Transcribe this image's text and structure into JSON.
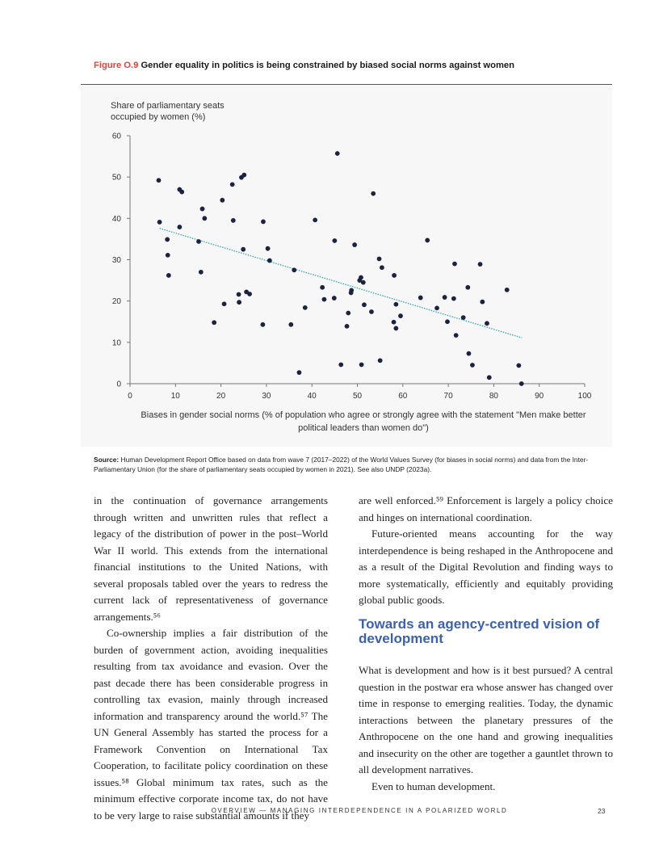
{
  "figure": {
    "number": "Figure O.9",
    "title": "Gender equality in politics is being constrained by biased social norms against women"
  },
  "chart_data": {
    "type": "scatter",
    "title": "Gender equality in politics is being constrained by biased social norms against women",
    "ylabel": "Share of parliamentary seats occupied by women (%)",
    "xlabel": "Biases in gender social norms (% of population who agree or strongly agree with the statement \"Men make better political leaders than women do\")",
    "xlim": [
      0,
      100
    ],
    "ylim": [
      0,
      60
    ],
    "xticks": [
      "0",
      "10",
      "20",
      "30",
      "40",
      "50",
      "60",
      "70",
      "80",
      "90",
      "100"
    ],
    "yticks": [
      "0",
      "10",
      "20",
      "30",
      "40",
      "50",
      "60"
    ],
    "grid": false,
    "point_color": "#1c2340",
    "trend_color": "#3aa8a8",
    "trendline": [
      [
        6.5,
        37.6
      ],
      [
        86.2,
        11.1
      ]
    ],
    "points": [
      [
        6.3,
        49.2
      ],
      [
        6.5,
        39.1
      ],
      [
        8.2,
        34.9
      ],
      [
        8.3,
        31.1
      ],
      [
        8.5,
        26.2
      ],
      [
        10.9,
        47.0
      ],
      [
        11.4,
        46.4
      ],
      [
        10.9,
        37.9
      ],
      [
        15.1,
        34.4
      ],
      [
        15.6,
        27.0
      ],
      [
        15.9,
        42.3
      ],
      [
        16.4,
        40.0
      ],
      [
        18.5,
        14.8
      ],
      [
        20.3,
        44.4
      ],
      [
        20.7,
        19.3
      ],
      [
        22.5,
        48.2
      ],
      [
        22.7,
        39.5
      ],
      [
        23.9,
        21.6
      ],
      [
        24.0,
        19.7
      ],
      [
        24.5,
        49.9
      ],
      [
        25.1,
        50.5
      ],
      [
        24.9,
        32.5
      ],
      [
        25.6,
        22.2
      ],
      [
        26.3,
        21.7
      ],
      [
        29.2,
        14.3
      ],
      [
        29.3,
        39.2
      ],
      [
        30.3,
        32.7
      ],
      [
        30.7,
        29.8
      ],
      [
        35.4,
        14.3
      ],
      [
        36.1,
        27.5
      ],
      [
        37.2,
        2.7
      ],
      [
        38.5,
        18.4
      ],
      [
        40.7,
        39.6
      ],
      [
        42.3,
        23.3
      ],
      [
        42.7,
        20.4
      ],
      [
        44.9,
        20.7
      ],
      [
        45.0,
        34.6
      ],
      [
        45.6,
        55.7
      ],
      [
        46.4,
        4.6
      ],
      [
        47.7,
        13.9
      ],
      [
        48.0,
        17.1
      ],
      [
        48.7,
        22.6
      ],
      [
        48.6,
        22.0
      ],
      [
        49.4,
        33.6
      ],
      [
        50.9,
        4.6
      ],
      [
        53.5,
        46.0
      ],
      [
        65.4,
        34.7
      ],
      [
        54.8,
        30.2
      ],
      [
        55.4,
        28.1
      ],
      [
        58.1,
        26.2
      ],
      [
        71.4,
        29.0
      ],
      [
        77.0,
        28.9
      ],
      [
        50.8,
        25.7
      ],
      [
        50.5,
        25.0
      ],
      [
        51.3,
        24.5
      ],
      [
        74.3,
        23.3
      ],
      [
        82.9,
        22.7
      ],
      [
        63.9,
        20.8
      ],
      [
        69.2,
        20.9
      ],
      [
        71.2,
        20.6
      ],
      [
        77.5,
        19.8
      ],
      [
        58.5,
        19.2
      ],
      [
        51.5,
        19.1
      ],
      [
        67.5,
        18.3
      ],
      [
        53.1,
        17.4
      ],
      [
        59.5,
        16.4
      ],
      [
        73.3,
        16.0
      ],
      [
        58.0,
        14.9
      ],
      [
        69.8,
        15.0
      ],
      [
        78.5,
        14.6
      ],
      [
        58.5,
        13.4
      ],
      [
        71.7,
        11.7
      ],
      [
        74.5,
        7.3
      ],
      [
        55.0,
        5.6
      ],
      [
        75.3,
        4.5
      ],
      [
        85.5,
        4.4
      ],
      [
        79.0,
        1.5
      ],
      [
        86.1,
        0.0
      ]
    ]
  },
  "source": {
    "label": "Source:",
    "text": " Human Development Report Office based on data from wave 7 (2017–2022) of the World Values Survey (for biases in social norms) and data from the Inter-Parliamentary Union (for the share of parliamentary seats occupied by women in 2021). See also UNDP (2023a)."
  },
  "body": {
    "left": [
      "in the continuation of governance arrangements through written and unwritten rules that reflect a legacy of the distribution of power in the post–World War II world. This extends from the international financial institutions to the United Nations, with several proposals tabled over the years to redress the current lack of representativeness of governance arrangements.⁵⁶",
      "Co-ownership implies a fair distribution of the burden of government action, avoiding inequalities resulting from tax avoidance and evasion. Over the past decade there has been considerable progress in controlling tax evasion, mainly through increased information and transparency around the world.⁵⁷ The UN General Assembly has started the process for a Framework Convention on International Tax Cooperation, to facilitate policy coordination on these issues.⁵⁸ Global minimum tax rates, such as the minimum effective corporate income tax, do not have to be very large to raise substantial amounts if they"
    ],
    "right_top": [
      "are well enforced.⁵⁹ Enforcement is largely a policy choice and hinges on international coordination.",
      "Future-oriented means accounting for the way interdependence is being reshaped in the Anthropocene and as a result of the Digital Revolution and finding ways to more systematically, efficiently and equitably providing global public goods."
    ],
    "heading": "Towards an agency-centred vision of development",
    "right_bottom": [
      "What is development and how is it best pursued? A central question in the postwar era whose answer has changed over time in response to emerging realities. Today, the dynamic interactions between the planetary pressures of the Anthropocene on the one hand and growing inequalities and insecurity on the other are together a gauntlet thrown to all development narratives.",
      "Even to human development."
    ]
  },
  "footer": {
    "running_title": "OVERVIEW — MANAGING INTERDEPENDENCE IN A POLARIZED WORLD",
    "page_number": "23"
  }
}
